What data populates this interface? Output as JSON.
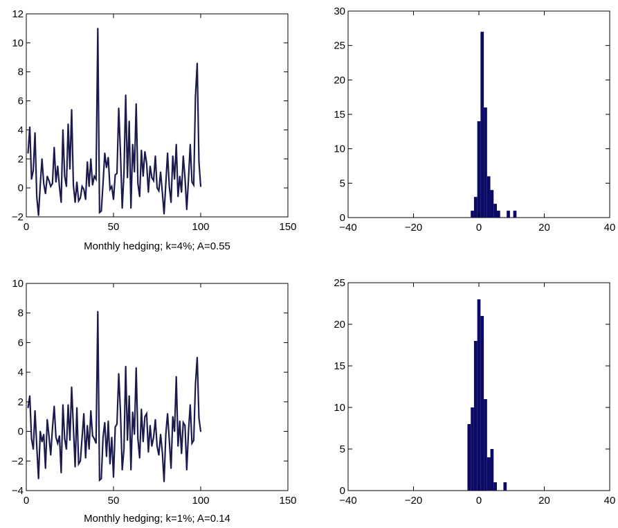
{
  "chart_data": [
    {
      "type": "line",
      "xlabel": "Monthly hedging; k=4%; A=0.55",
      "xlim": [
        0,
        150
      ],
      "ylim": [
        -2,
        12
      ],
      "xticks": [
        0,
        50,
        100,
        150
      ],
      "yticks": [
        -2,
        0,
        2,
        4,
        6,
        8,
        10,
        12
      ],
      "series": [
        {
          "color": "#1a1a4e",
          "x": [
            1,
            2,
            3,
            4,
            5,
            6,
            7,
            8,
            9,
            10,
            11,
            12,
            13,
            14,
            15,
            16,
            17,
            18,
            19,
            20,
            21,
            22,
            23,
            24,
            25,
            26,
            27,
            28,
            29,
            30,
            31,
            32,
            33,
            34,
            35,
            36,
            37,
            38,
            39,
            40,
            41,
            42,
            43,
            44,
            45,
            46,
            47,
            48,
            49,
            50,
            51,
            52,
            53,
            54,
            55,
            56,
            57,
            58,
            59,
            60,
            61,
            62,
            63,
            64,
            65,
            66,
            67,
            68,
            69,
            70,
            71,
            72,
            73,
            74,
            75,
            76,
            77,
            78,
            79,
            80,
            81,
            82,
            83,
            84,
            85,
            86,
            87,
            88,
            89,
            90,
            91,
            92,
            93,
            94,
            95,
            96,
            97,
            98,
            99,
            100
          ],
          "y": [
            2.4,
            4.2,
            0.6,
            1.2,
            3.8,
            -0.6,
            -1.9,
            0.2,
            2.0,
            0.3,
            -0.4,
            0.8,
            0.5,
            0.1,
            0.3,
            2.8,
            0.4,
            1.5,
            0.1,
            -1.0,
            4.0,
            0.8,
            0.1,
            4.4,
            1.3,
            5.4,
            0.2,
            -1.0,
            0.4,
            -0.9,
            -0.7,
            0.1,
            -0.1,
            -0.8,
            1.8,
            0.1,
            2.0,
            0.2,
            0.8,
            0.6,
            11.0,
            -1.7,
            -1.6,
            0.3,
            2.4,
            1.4,
            2.1,
            -0.1,
            0.1,
            -0.8,
            0.9,
            1.0,
            5.5,
            2.4,
            -1.4,
            1.0,
            6.4,
            0.7,
            4.6,
            -1.4,
            3.0,
            1.1,
            5.8,
            0.3,
            -0.6,
            2.6,
            0.8,
            2.5,
            1.7,
            -0.3,
            1.5,
            0.7,
            0.5,
            2.2,
            0.0,
            -0.2,
            1.1,
            -0.3,
            -1.8,
            0.3,
            2.4,
            0.1,
            -1.0,
            2.2,
            0.6,
            3.0,
            -0.6,
            0.8,
            -0.3,
            2.2,
            0.7,
            -1.5,
            0.6,
            3.0,
            0.4,
            0.2,
            6.3,
            8.6,
            1.8,
            0.1
          ]
        }
      ]
    },
    {
      "type": "bar",
      "xlim": [
        -40,
        40
      ],
      "ylim": [
        0,
        30
      ],
      "xticks": [
        -40,
        -20,
        0,
        20,
        40
      ],
      "yticks": [
        0,
        5,
        10,
        15,
        20,
        25,
        30
      ],
      "bin_width": 1,
      "bin_centers": [
        -2,
        -1,
        0,
        1,
        2,
        3,
        4,
        5,
        6,
        7,
        8,
        9,
        10,
        11
      ],
      "values": [
        1,
        3,
        14,
        27,
        16,
        6,
        4,
        2,
        1,
        0,
        0,
        1,
        0,
        1
      ],
      "color": "#0b0b66"
    },
    {
      "type": "line",
      "xlabel": "Monthly hedging; k=1%; A=0.14",
      "xlim": [
        0,
        150
      ],
      "ylim": [
        -4,
        10
      ],
      "xticks": [
        0,
        50,
        100,
        150
      ],
      "yticks": [
        -4,
        -2,
        0,
        2,
        4,
        6,
        8,
        10
      ],
      "series": [
        {
          "color": "#1a1a4e",
          "x": [
            1,
            2,
            3,
            4,
            5,
            6,
            7,
            8,
            9,
            10,
            11,
            12,
            13,
            14,
            15,
            16,
            17,
            18,
            19,
            20,
            21,
            22,
            23,
            24,
            25,
            26,
            27,
            28,
            29,
            30,
            31,
            32,
            33,
            34,
            35,
            36,
            37,
            38,
            39,
            40,
            41,
            42,
            43,
            44,
            45,
            46,
            47,
            48,
            49,
            50,
            51,
            52,
            53,
            54,
            55,
            56,
            57,
            58,
            59,
            60,
            61,
            62,
            63,
            64,
            65,
            66,
            67,
            68,
            69,
            70,
            71,
            72,
            73,
            74,
            75,
            76,
            77,
            78,
            79,
            80,
            81,
            82,
            83,
            84,
            85,
            86,
            87,
            88,
            89,
            90,
            91,
            92,
            93,
            94,
            95,
            96,
            97,
            98,
            99,
            100
          ],
          "y": [
            1.6,
            2.4,
            -0.5,
            -1.2,
            1.4,
            -1.0,
            -3.2,
            0.0,
            -0.7,
            -0.2,
            -2.5,
            0.8,
            -0.3,
            -1.6,
            0.2,
            1.7,
            -0.4,
            -0.8,
            -0.3,
            -2.8,
            1.8,
            -0.5,
            -1.2,
            1.8,
            -0.6,
            3.0,
            0.3,
            -2.4,
            1.6,
            -2.2,
            -2.0,
            -0.4,
            1.2,
            -1.8,
            0.4,
            -1.2,
            1.4,
            -0.3,
            -0.5,
            -0.8,
            8.1,
            -3.3,
            -3.2,
            -0.4,
            0.6,
            -1.7,
            0.7,
            -2.2,
            -0.4,
            -3.1,
            0.3,
            0.5,
            3.9,
            1.3,
            -2.6,
            -1.2,
            4.4,
            -0.6,
            2.4,
            -2.6,
            1.3,
            -0.2,
            4.3,
            -0.5,
            -1.8,
            1.5,
            -0.7,
            1.0,
            1.2,
            -1.4,
            0.4,
            -1.0,
            -0.4,
            0.8,
            -1.0,
            -1.6,
            -0.2,
            -1.4,
            -3.4,
            -0.2,
            1.2,
            -0.6,
            -2.5,
            1.0,
            0.0,
            3.7,
            -1.0,
            0.7,
            -1.5,
            0.6,
            0.4,
            -2.6,
            0.0,
            1.8,
            -0.8,
            -0.6,
            3.2,
            5.0,
            0.9,
            0.0
          ]
        }
      ]
    },
    {
      "type": "bar",
      "xlim": [
        -40,
        40
      ],
      "ylim": [
        0,
        25
      ],
      "xticks": [
        -40,
        -20,
        0,
        20,
        40
      ],
      "yticks": [
        0,
        5,
        10,
        15,
        20,
        25
      ],
      "bin_width": 1,
      "bin_centers": [
        -3,
        -2,
        -1,
        0,
        1,
        2,
        3,
        4,
        5,
        6,
        7,
        8
      ],
      "values": [
        8,
        10,
        18,
        23,
        21,
        11,
        4,
        5,
        1,
        0,
        0,
        1
      ],
      "color": "#0b0b66"
    }
  ]
}
